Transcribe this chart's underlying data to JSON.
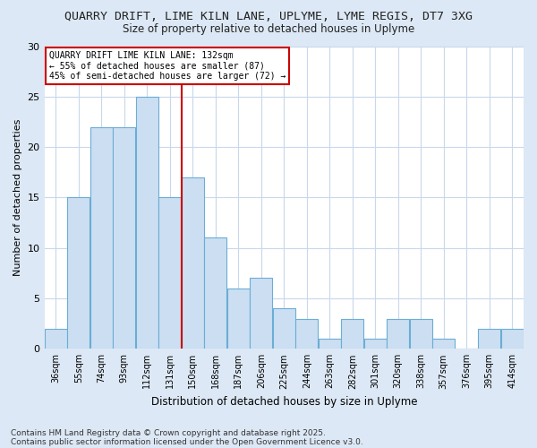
{
  "title_line1": "QUARRY DRIFT, LIME KILN LANE, UPLYME, LYME REGIS, DT7 3XG",
  "title_line2": "Size of property relative to detached houses in Uplyme",
  "xlabel": "Distribution of detached houses by size in Uplyme",
  "ylabel": "Number of detached properties",
  "categories": [
    "36sqm",
    "55sqm",
    "74sqm",
    "93sqm",
    "112sqm",
    "131sqm",
    "150sqm",
    "168sqm",
    "187sqm",
    "206sqm",
    "225sqm",
    "244sqm",
    "263sqm",
    "282sqm",
    "301sqm",
    "320sqm",
    "338sqm",
    "357sqm",
    "376sqm",
    "395sqm",
    "414sqm"
  ],
  "values": [
    2,
    15,
    22,
    22,
    25,
    15,
    17,
    11,
    6,
    7,
    4,
    3,
    1,
    3,
    1,
    3,
    3,
    1,
    0,
    2,
    2
  ],
  "bar_color": "#ccdff2",
  "bar_edge_color": "#6aadd5",
  "highlight_index": 5,
  "highlight_color": "#cc0000",
  "annotation_title": "QUARRY DRIFT LIME KILN LANE: 132sqm",
  "annotation_line2": "← 55% of detached houses are smaller (87)",
  "annotation_line3": "45% of semi-detached houses are larger (72) →",
  "annotation_box_edge": "#cc0000",
  "ylim": [
    0,
    30
  ],
  "yticks": [
    0,
    5,
    10,
    15,
    20,
    25,
    30
  ],
  "footer1": "Contains HM Land Registry data © Crown copyright and database right 2025.",
  "footer2": "Contains public sector information licensed under the Open Government Licence v3.0.",
  "bg_color": "#dce8f5",
  "plot_bg_color": "#ffffff",
  "grid_color": "#c8d8ec",
  "title_fontsize": 9.5,
  "subtitle_fontsize": 8.5,
  "footer_fontsize": 6.5
}
